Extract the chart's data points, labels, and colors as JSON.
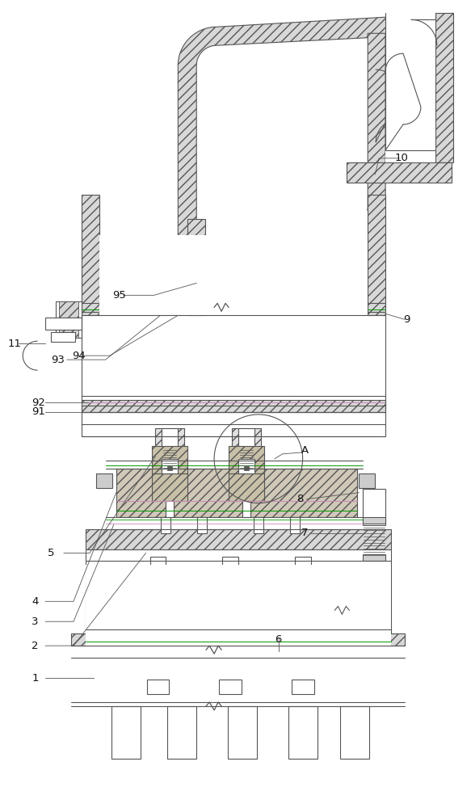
{
  "bg": "#ffffff",
  "lc": "#555555",
  "gc": "#009900",
  "pc": "#cc88bb",
  "hc": "#aaaaaa",
  "fig_w": 5.83,
  "fig_h": 10.0,
  "dpi": 100
}
